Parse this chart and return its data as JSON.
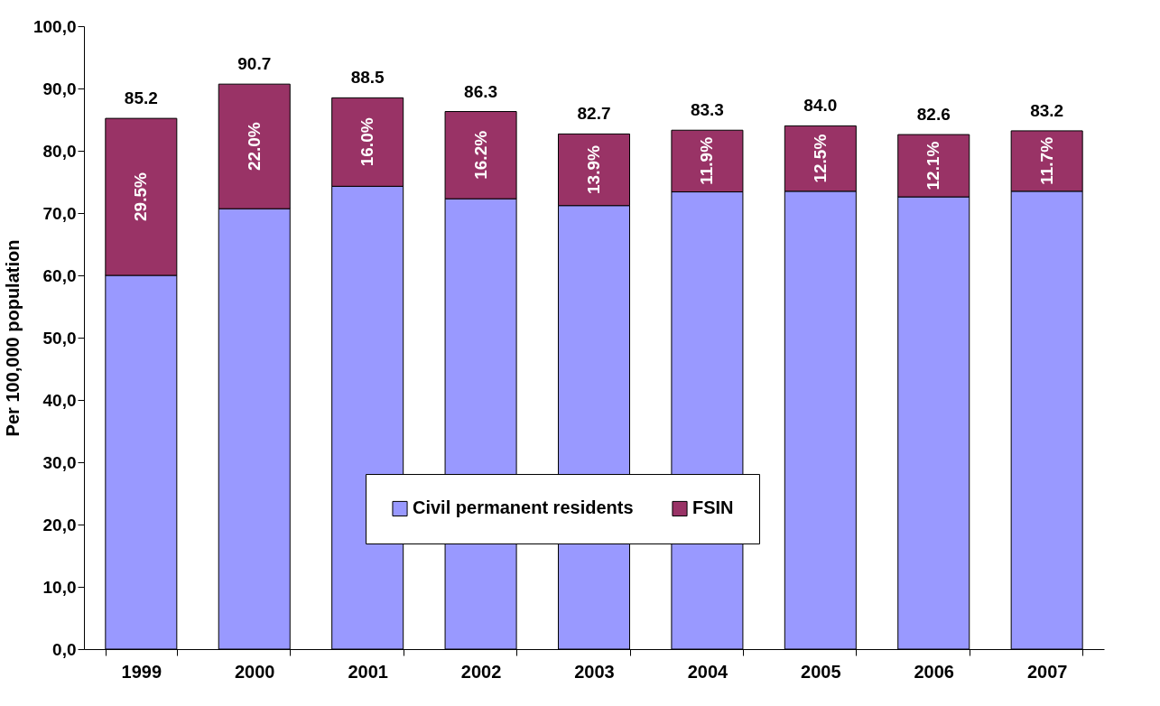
{
  "chart_data": {
    "type": "bar",
    "stacked": true,
    "ylabel": "Per 100,000 population",
    "categories": [
      "1999",
      "2000",
      "2001",
      "2002",
      "2003",
      "2004",
      "2005",
      "2006",
      "2007"
    ],
    "series": [
      {
        "name": "Civil permanent residents",
        "color": "#9999ff",
        "values": [
          60.0,
          70.7,
          74.3,
          72.3,
          71.2,
          73.4,
          73.5,
          72.6,
          73.5
        ]
      },
      {
        "name": "FSIN",
        "color": "#993366",
        "values": [
          25.2,
          20.0,
          14.2,
          14.0,
          11.5,
          9.9,
          10.5,
          10.0,
          9.7
        ]
      }
    ],
    "annotations": [
      "29.5%",
      "22.0%",
      "16.0%",
      "16.2%",
      "13.9%",
      "11.9%",
      "12.5%",
      "12.1%",
      "11.7%"
    ],
    "totals": [
      "85.2",
      "90.7",
      "88.5",
      "86.3",
      "82.7",
      "83.3",
      "84.0",
      "82.6",
      "83.2"
    ],
    "ylim": [
      0,
      100
    ],
    "yticks": [
      {
        "value": 0,
        "label": "0,0"
      },
      {
        "value": 10,
        "label": "10,0"
      },
      {
        "value": 20,
        "label": "20,0"
      },
      {
        "value": 30,
        "label": "30,0"
      },
      {
        "value": 40,
        "label": "40,0"
      },
      {
        "value": 50,
        "label": "50,0"
      },
      {
        "value": 60,
        "label": "60,0"
      },
      {
        "value": 70,
        "label": "70,0"
      },
      {
        "value": 80,
        "label": "80,0"
      },
      {
        "value": 90,
        "label": "90,0"
      },
      {
        "value": 100,
        "label": "100,0"
      }
    ],
    "grid": false,
    "legend": "bottom"
  }
}
